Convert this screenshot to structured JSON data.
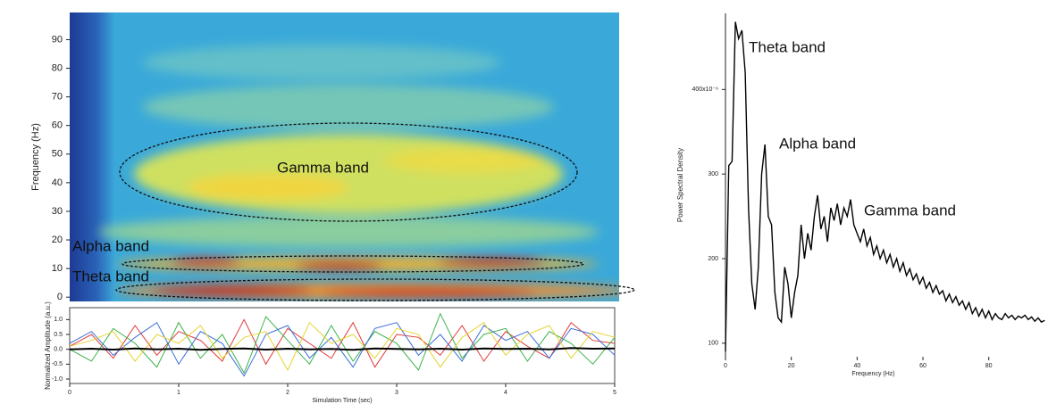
{
  "chart_data": [
    {
      "type": "heatmap",
      "ylabel": "Frequency (Hz)",
      "ylim": [
        -1.5,
        99.5
      ],
      "yticks": [
        0,
        10,
        20,
        30,
        40,
        50,
        60,
        70,
        80,
        90
      ],
      "annotations": [
        "Gamma band",
        "Alpha band",
        "Theta band"
      ]
    },
    {
      "type": "line",
      "xlabel": "Simulation Time (sec)",
      "ylabel": "Normalized Amplitude (a.u.)",
      "xlim": [
        0,
        5
      ],
      "xticks": [
        0,
        1,
        2,
        3,
        4,
        5
      ],
      "ylim": [
        -1.15,
        1.4
      ],
      "yticks": [
        {
          "value": -1,
          "label": "-1.0"
        },
        {
          "value": -0.5,
          "label": "-0.5"
        },
        {
          "value": 0,
          "label": "0.0"
        },
        {
          "value": 0.5,
          "label": "0.5"
        },
        {
          "value": 1,
          "label": "1.0"
        }
      ],
      "x": [
        0,
        0.2,
        0.4,
        0.6,
        0.8,
        1,
        1.2,
        1.4,
        1.6,
        1.8,
        2,
        2.2,
        2.4,
        2.6,
        2.8,
        3,
        3.2,
        3.4,
        3.6,
        3.8,
        4,
        4.2,
        4.4,
        4.6,
        4.8,
        5
      ],
      "series": [
        {
          "color": "#e03a3a",
          "values": [
            0.1,
            0.5,
            -0.3,
            0.8,
            -0.2,
            0.6,
            0.3,
            -0.4,
            1.0,
            -0.5,
            0.7,
            0.2,
            -0.3,
            0.9,
            -0.6,
            0.5,
            0.4,
            -0.2,
            0.8,
            -0.4,
            0.6,
            0.1,
            -0.3,
            0.9,
            0.3,
            0.2
          ]
        },
        {
          "color": "#3cb34a",
          "values": [
            0.0,
            -0.4,
            0.7,
            0.2,
            -0.6,
            0.9,
            -0.3,
            0.5,
            -0.8,
            1.1,
            0.3,
            -0.5,
            0.8,
            -0.4,
            0.6,
            0.2,
            -0.7,
            1.2,
            -0.3,
            0.5,
            0.7,
            -0.4,
            0.6,
            0.2,
            -0.5,
            0.4
          ]
        },
        {
          "color": "#3a6fd8",
          "values": [
            0.2,
            0.6,
            -0.2,
            0.4,
            0.9,
            -0.5,
            0.6,
            0.2,
            -0.9,
            0.5,
            0.8,
            -0.3,
            0.4,
            -0.6,
            0.7,
            0.9,
            -0.2,
            0.5,
            -0.4,
            0.8,
            0.3,
            0.6,
            -0.3,
            0.7,
            0.5,
            -0.2
          ]
        },
        {
          "color": "#e6d431",
          "values": [
            0.1,
            0.3,
            0.6,
            -0.4,
            0.5,
            0.2,
            0.8,
            -0.3,
            0.4,
            0.6,
            -0.7,
            0.9,
            0.2,
            0.5,
            -0.3,
            0.7,
            0.5,
            -0.6,
            0.4,
            0.9,
            -0.2,
            0.5,
            0.8,
            -0.3,
            0.6,
            0.4
          ]
        },
        {
          "color": "#000000",
          "values": [
            0.0,
            0.02,
            -0.01,
            0.03,
            0.0,
            0.02,
            -0.02,
            0.01,
            0.03,
            -0.01,
            0.02,
            0.0,
            0.01,
            -0.02,
            0.03,
            0.01,
            0.0,
            0.02,
            -0.01,
            0.03,
            0.01,
            0.02,
            0.0,
            0.04,
            0.02,
            0.03
          ]
        }
      ]
    },
    {
      "type": "line",
      "xlabel": "Frequency (Hz)",
      "ylabel": "Power Spectral Density",
      "color": "#000000",
      "xlim": [
        0,
        98
      ],
      "xticks": [
        0,
        20,
        40,
        60,
        80
      ],
      "ylim": [
        84,
        490
      ],
      "yticks": [
        100,
        200,
        300,
        {
          "value": 400,
          "label": "400x10⁻⁶"
        }
      ],
      "annotations": [
        "Theta band",
        "Alpha band",
        "Gamma band"
      ],
      "x": [
        0,
        1,
        2,
        3,
        4,
        5,
        6,
        7,
        8,
        9,
        10,
        11,
        12,
        13,
        14,
        15,
        16,
        17,
        18,
        19,
        20,
        21,
        22,
        23,
        24,
        25,
        26,
        27,
        28,
        29,
        30,
        31,
        32,
        33,
        34,
        35,
        36,
        37,
        38,
        39,
        40,
        41,
        42,
        43,
        44,
        45,
        46,
        47,
        48,
        49,
        50,
        51,
        52,
        53,
        54,
        55,
        56,
        57,
        58,
        59,
        60,
        61,
        62,
        63,
        64,
        65,
        66,
        67,
        68,
        69,
        70,
        71,
        72,
        73,
        74,
        75,
        76,
        77,
        78,
        79,
        80,
        81,
        82,
        83,
        84,
        85,
        86,
        87,
        88,
        89,
        90,
        91,
        92,
        93,
        94,
        95,
        96,
        97
      ],
      "values": [
        90,
        310,
        315,
        480,
        460,
        470,
        420,
        260,
        170,
        140,
        190,
        300,
        335,
        250,
        240,
        160,
        130,
        125,
        190,
        170,
        130,
        160,
        180,
        240,
        200,
        230,
        210,
        250,
        275,
        235,
        250,
        220,
        260,
        245,
        265,
        240,
        260,
        250,
        270,
        240,
        230,
        220,
        235,
        215,
        225,
        205,
        215,
        200,
        210,
        195,
        205,
        190,
        200,
        185,
        195,
        180,
        188,
        175,
        182,
        170,
        178,
        165,
        172,
        160,
        168,
        158,
        162,
        150,
        158,
        148,
        155,
        145,
        150,
        140,
        148,
        135,
        142,
        132,
        140,
        130,
        138,
        128,
        135,
        130,
        128,
        135,
        130,
        133,
        128,
        132,
        130,
        133,
        128,
        131,
        126,
        130,
        125,
        127
      ]
    }
  ]
}
